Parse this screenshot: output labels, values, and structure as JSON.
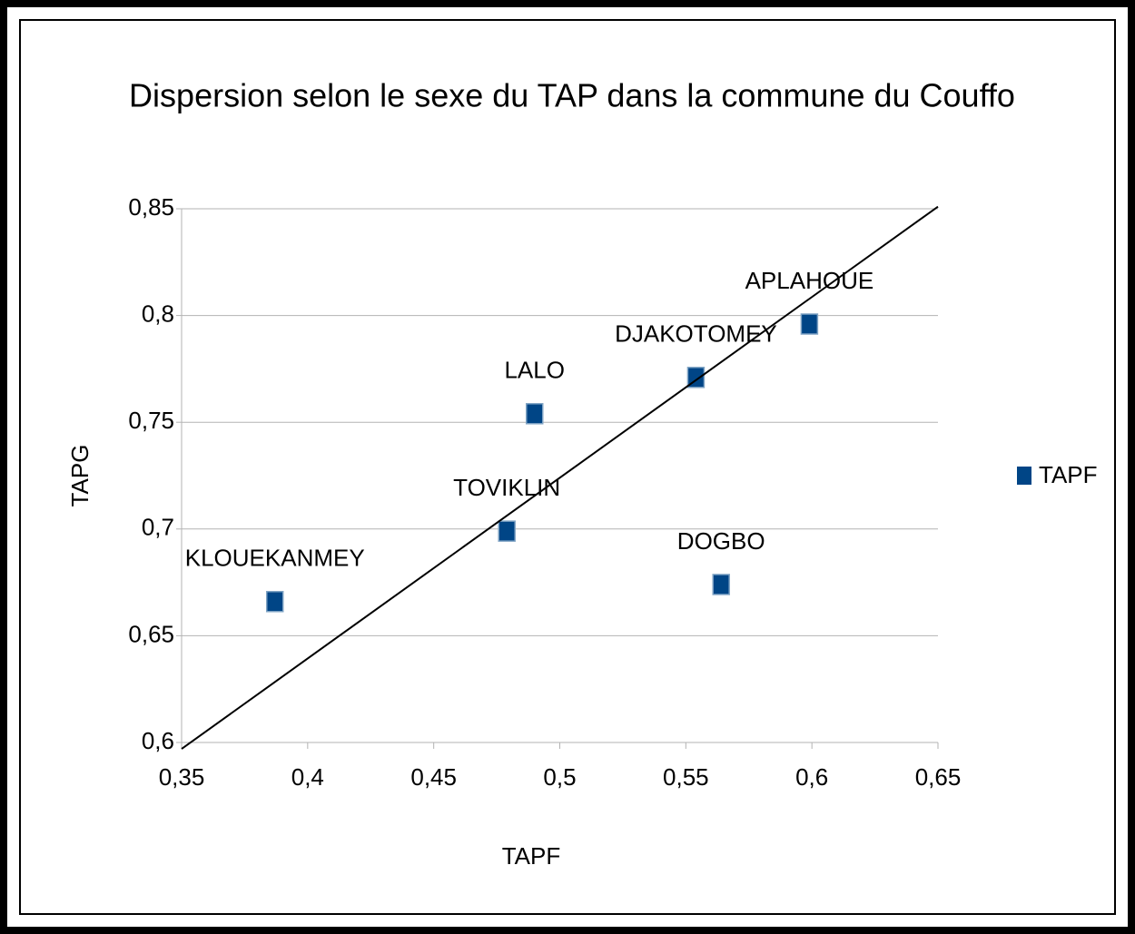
{
  "chart_data": {
    "type": "scatter",
    "title": "Dispersion selon le sexe du TAP dans la commune du Couffo",
    "x_label": "TAPF",
    "y_label": "TAPG",
    "series": [
      {
        "name": "TAPF",
        "color": "#004586",
        "labels": [
          "KLOUEKANMEY",
          "TOVIKLIN",
          "LALO",
          "DJAKOTOMEY",
          "DOGBO",
          "APLAHOUE"
        ],
        "x": [
          0.387,
          0.479,
          0.49,
          0.554,
          0.564,
          0.599
        ],
        "values": [
          0.666,
          0.699,
          0.754,
          0.771,
          0.674,
          0.796
        ]
      }
    ],
    "trendline": {
      "x": [
        0.35,
        0.65
      ],
      "y": [
        0.597,
        0.851
      ]
    },
    "xlim": [
      0.35,
      0.65
    ],
    "xticks": [
      {
        "value": 0.35,
        "label": "0,35"
      },
      {
        "value": 0.4,
        "label": "0,4"
      },
      {
        "value": 0.45,
        "label": "0,45"
      },
      {
        "value": 0.5,
        "label": "0,5"
      },
      {
        "value": 0.55,
        "label": "0,55"
      },
      {
        "value": 0.6,
        "label": "0,6"
      },
      {
        "value": 0.65,
        "label": "0,65"
      }
    ],
    "ylim": [
      0.6,
      0.85
    ],
    "yticks": [
      {
        "value": 0.6,
        "label": "0,6"
      },
      {
        "value": 0.65,
        "label": "0,65"
      },
      {
        "value": 0.7,
        "label": "0,7"
      },
      {
        "value": 0.75,
        "label": "0,75"
      },
      {
        "value": 0.8,
        "label": "0,8"
      },
      {
        "value": 0.85,
        "label": "0,85"
      }
    ],
    "grid": "y",
    "legend": "right"
  }
}
